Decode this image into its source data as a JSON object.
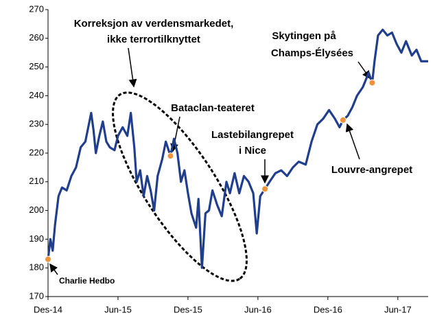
{
  "chart_data": {
    "type": "line",
    "x": [
      0.0,
      0.2,
      0.4,
      0.6,
      0.9,
      1.2,
      1.6,
      2.0,
      2.4,
      2.8,
      3.2,
      3.7,
      3.9,
      4.1,
      4.4,
      4.7,
      5.0,
      5.3,
      5.7,
      6.0,
      6.4,
      6.8,
      7.1,
      7.4,
      7.6,
      7.9,
      8.2,
      8.5,
      8.8,
      9.1,
      9.4,
      9.8,
      10.1,
      10.5,
      10.8,
      11.1,
      11.4,
      11.7,
      12.0,
      12.3,
      12.7,
      12.9,
      13.2,
      13.5,
      13.8,
      14.1,
      14.5,
      14.9,
      15.3,
      15.6,
      16.0,
      16.4,
      16.8,
      17.2,
      17.6,
      17.9,
      18.2,
      18.6,
      19.0,
      19.5,
      20.0,
      20.5,
      21.0,
      21.5,
      22.1,
      22.6,
      23.1,
      23.6,
      24.1,
      24.6,
      25.0,
      25.3,
      25.7,
      26.1,
      26.5,
      27.0,
      27.5,
      27.8,
      28.0,
      28.3,
      28.7,
      29.1,
      29.5,
      29.9,
      30.3,
      30.7,
      31.2,
      31.6,
      32.0,
      32.6
    ],
    "series": [
      {
        "color": "#1f3e8e",
        "values": [
          183,
          190,
          186,
          195,
          205,
          208,
          207,
          212,
          215,
          222,
          224,
          234,
          228,
          220,
          226,
          231,
          224,
          222,
          221,
          226,
          229,
          226,
          234,
          222,
          210,
          214,
          205,
          212,
          207,
          200,
          212,
          218,
          224,
          219,
          225,
          220,
          210,
          214,
          206,
          199,
          194,
          204,
          180,
          199,
          200,
          207,
          202,
          198,
          210,
          206,
          213,
          206,
          212,
          210,
          206,
          192,
          205,
          207.5,
          210,
          213,
          214,
          212,
          215,
          217,
          216,
          224,
          230,
          232,
          235,
          232,
          229,
          231.5,
          233,
          236,
          240,
          243,
          248,
          244.5,
          252,
          261,
          263,
          261,
          262,
          258,
          255,
          259,
          254,
          256,
          252,
          252
        ]
      }
    ],
    "xlim": [
      0,
      32.6
    ],
    "xticks": [
      {
        "value": 0,
        "label": "Des-14"
      },
      {
        "value": 6,
        "label": "Jun-15"
      },
      {
        "value": 12,
        "label": "Des-15"
      },
      {
        "value": 18,
        "label": "Jun-16"
      },
      {
        "value": 24,
        "label": "Des-16"
      },
      {
        "value": 30,
        "label": "Jun-17"
      }
    ],
    "ylim": [
      170,
      270
    ],
    "yticks": [
      170,
      180,
      190,
      200,
      210,
      220,
      230,
      240,
      250,
      260,
      270
    ],
    "annotations": [
      {
        "lines": [
          "Charlie Hedbo"
        ],
        "x": 0.0,
        "y": 183
      },
      {
        "lines": [
          "Bataclan-teateret"
        ],
        "x": 10.5,
        "y": 219
      },
      {
        "lines": [
          "Lastebilangrepet",
          "i Nice"
        ],
        "x": 18.6,
        "y": 207.5
      },
      {
        "lines": [
          "Louvre-angrepet"
        ],
        "x": 25.3,
        "y": 231.5
      },
      {
        "lines": [
          "Skytingen på",
          "Champs-Élysées"
        ],
        "x": 27.8,
        "y": 244.5
      }
    ],
    "callout": {
      "lines": [
        "Korreksjon av verdensmarkedet,",
        "ikke terrortilknyttet"
      ]
    },
    "marker_color": "#f0923a"
  }
}
